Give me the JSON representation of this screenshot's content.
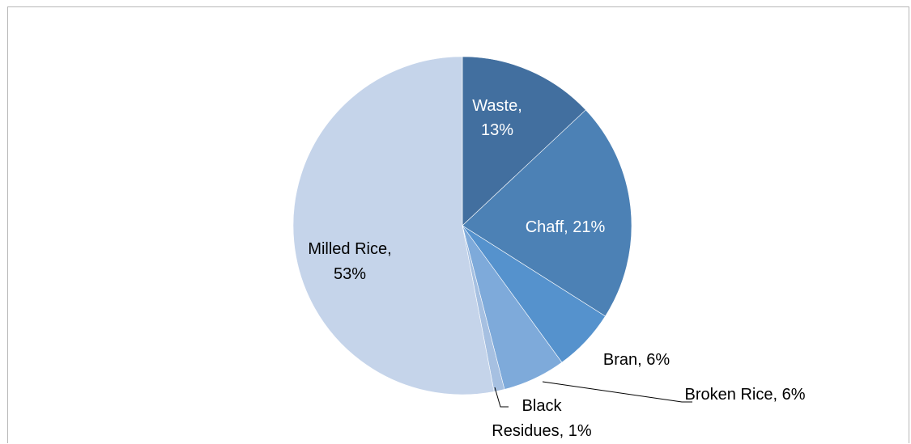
{
  "chart_data": {
    "type": "pie",
    "title": "",
    "start_angle_deg": 0,
    "direction": "clockwise",
    "slices": [
      {
        "name": "Waste",
        "value": 13,
        "label_line1": "Waste,",
        "label_line2": "13%",
        "color": "#426f9f",
        "label_color": "#ffffff"
      },
      {
        "name": "Chaff",
        "value": 21,
        "label_line1": "Chaff, 21%",
        "label_line2": "",
        "color": "#4c81b5",
        "label_color": "#ffffff"
      },
      {
        "name": "Bran",
        "value": 6,
        "label_line1": "Bran, 6%",
        "label_line2": "",
        "color": "#5592cd",
        "label_color": "#000000"
      },
      {
        "name": "Broken Rice",
        "value": 6,
        "label_line1": "Broken Rice, 6%",
        "label_line2": "",
        "color": "#7eaada",
        "label_color": "#000000"
      },
      {
        "name": "Black Residues",
        "value": 1,
        "label_line1": "Black",
        "label_line2": "Residues, 1%",
        "color": "#a6c0e1",
        "label_color": "#000000"
      },
      {
        "name": "Milled Rice",
        "value": 53,
        "label_line1": "Milled Rice,",
        "label_line2": "53%",
        "color": "#c5d4ea",
        "label_color": "#000000"
      }
    ],
    "legend": "none"
  }
}
